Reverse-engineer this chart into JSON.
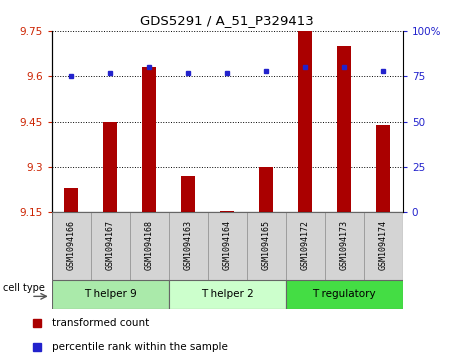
{
  "title": "GDS5291 / A_51_P329413",
  "samples": [
    "GSM1094166",
    "GSM1094167",
    "GSM1094168",
    "GSM1094163",
    "GSM1094164",
    "GSM1094165",
    "GSM1094172",
    "GSM1094173",
    "GSM1094174"
  ],
  "bar_values": [
    9.23,
    9.45,
    9.63,
    9.27,
    9.155,
    9.3,
    9.75,
    9.7,
    9.44
  ],
  "percentile_values": [
    75,
    77,
    80,
    77,
    77,
    78,
    80,
    80,
    78
  ],
  "ylim_left": [
    9.15,
    9.75
  ],
  "ylim_right": [
    0,
    100
  ],
  "yticks_left": [
    9.15,
    9.3,
    9.45,
    9.6,
    9.75
  ],
  "yticks_right": [
    0,
    25,
    50,
    75,
    100
  ],
  "ytick_labels_left": [
    "9.15",
    "9.3",
    "9.45",
    "9.6",
    "9.75"
  ],
  "ytick_labels_right": [
    "0",
    "25",
    "50",
    "75",
    "100%"
  ],
  "bar_color": "#aa0000",
  "dot_color": "#2222cc",
  "groups": [
    {
      "label": "T helper 9",
      "indices": [
        0,
        1,
        2
      ],
      "color": "#aaeaaa"
    },
    {
      "label": "T helper 2",
      "indices": [
        3,
        4,
        5
      ],
      "color": "#ccffcc"
    },
    {
      "label": "T regulatory",
      "indices": [
        6,
        7,
        8
      ],
      "color": "#44dd44"
    }
  ],
  "cell_type_label": "cell type",
  "legend_bar_label": "transformed count",
  "legend_dot_label": "percentile rank within the sample",
  "bar_bottom": 9.15,
  "bar_width": 0.35
}
